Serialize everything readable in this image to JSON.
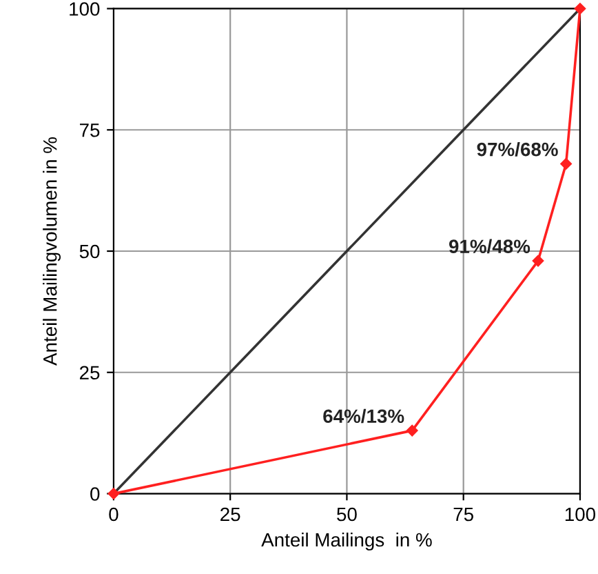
{
  "chart_data": {
    "type": "line",
    "xlabel": "Anteil Mailings  in %",
    "ylabel": "Anteil Mailingvolumen in %",
    "xlim": [
      0,
      100
    ],
    "ylim": [
      0,
      100
    ],
    "xticks": [
      0,
      25,
      50,
      75,
      100
    ],
    "yticks": [
      0,
      25,
      50,
      75,
      100
    ],
    "grid": true,
    "series": [
      {
        "color": "#333333",
        "x": [
          0,
          100
        ],
        "values": [
          0,
          100
        ],
        "marker": "none"
      },
      {
        "color": "#ff2020",
        "x": [
          0,
          64,
          91,
          97,
          100
        ],
        "values": [
          0,
          13,
          48,
          68,
          100
        ],
        "marker": "diamond"
      }
    ],
    "annotations": [
      {
        "text": "64%/13%",
        "x": 64,
        "y": 13
      },
      {
        "text": "91%/48%",
        "x": 91,
        "y": 48
      },
      {
        "text": "97%/68%",
        "x": 97,
        "y": 68
      }
    ]
  }
}
